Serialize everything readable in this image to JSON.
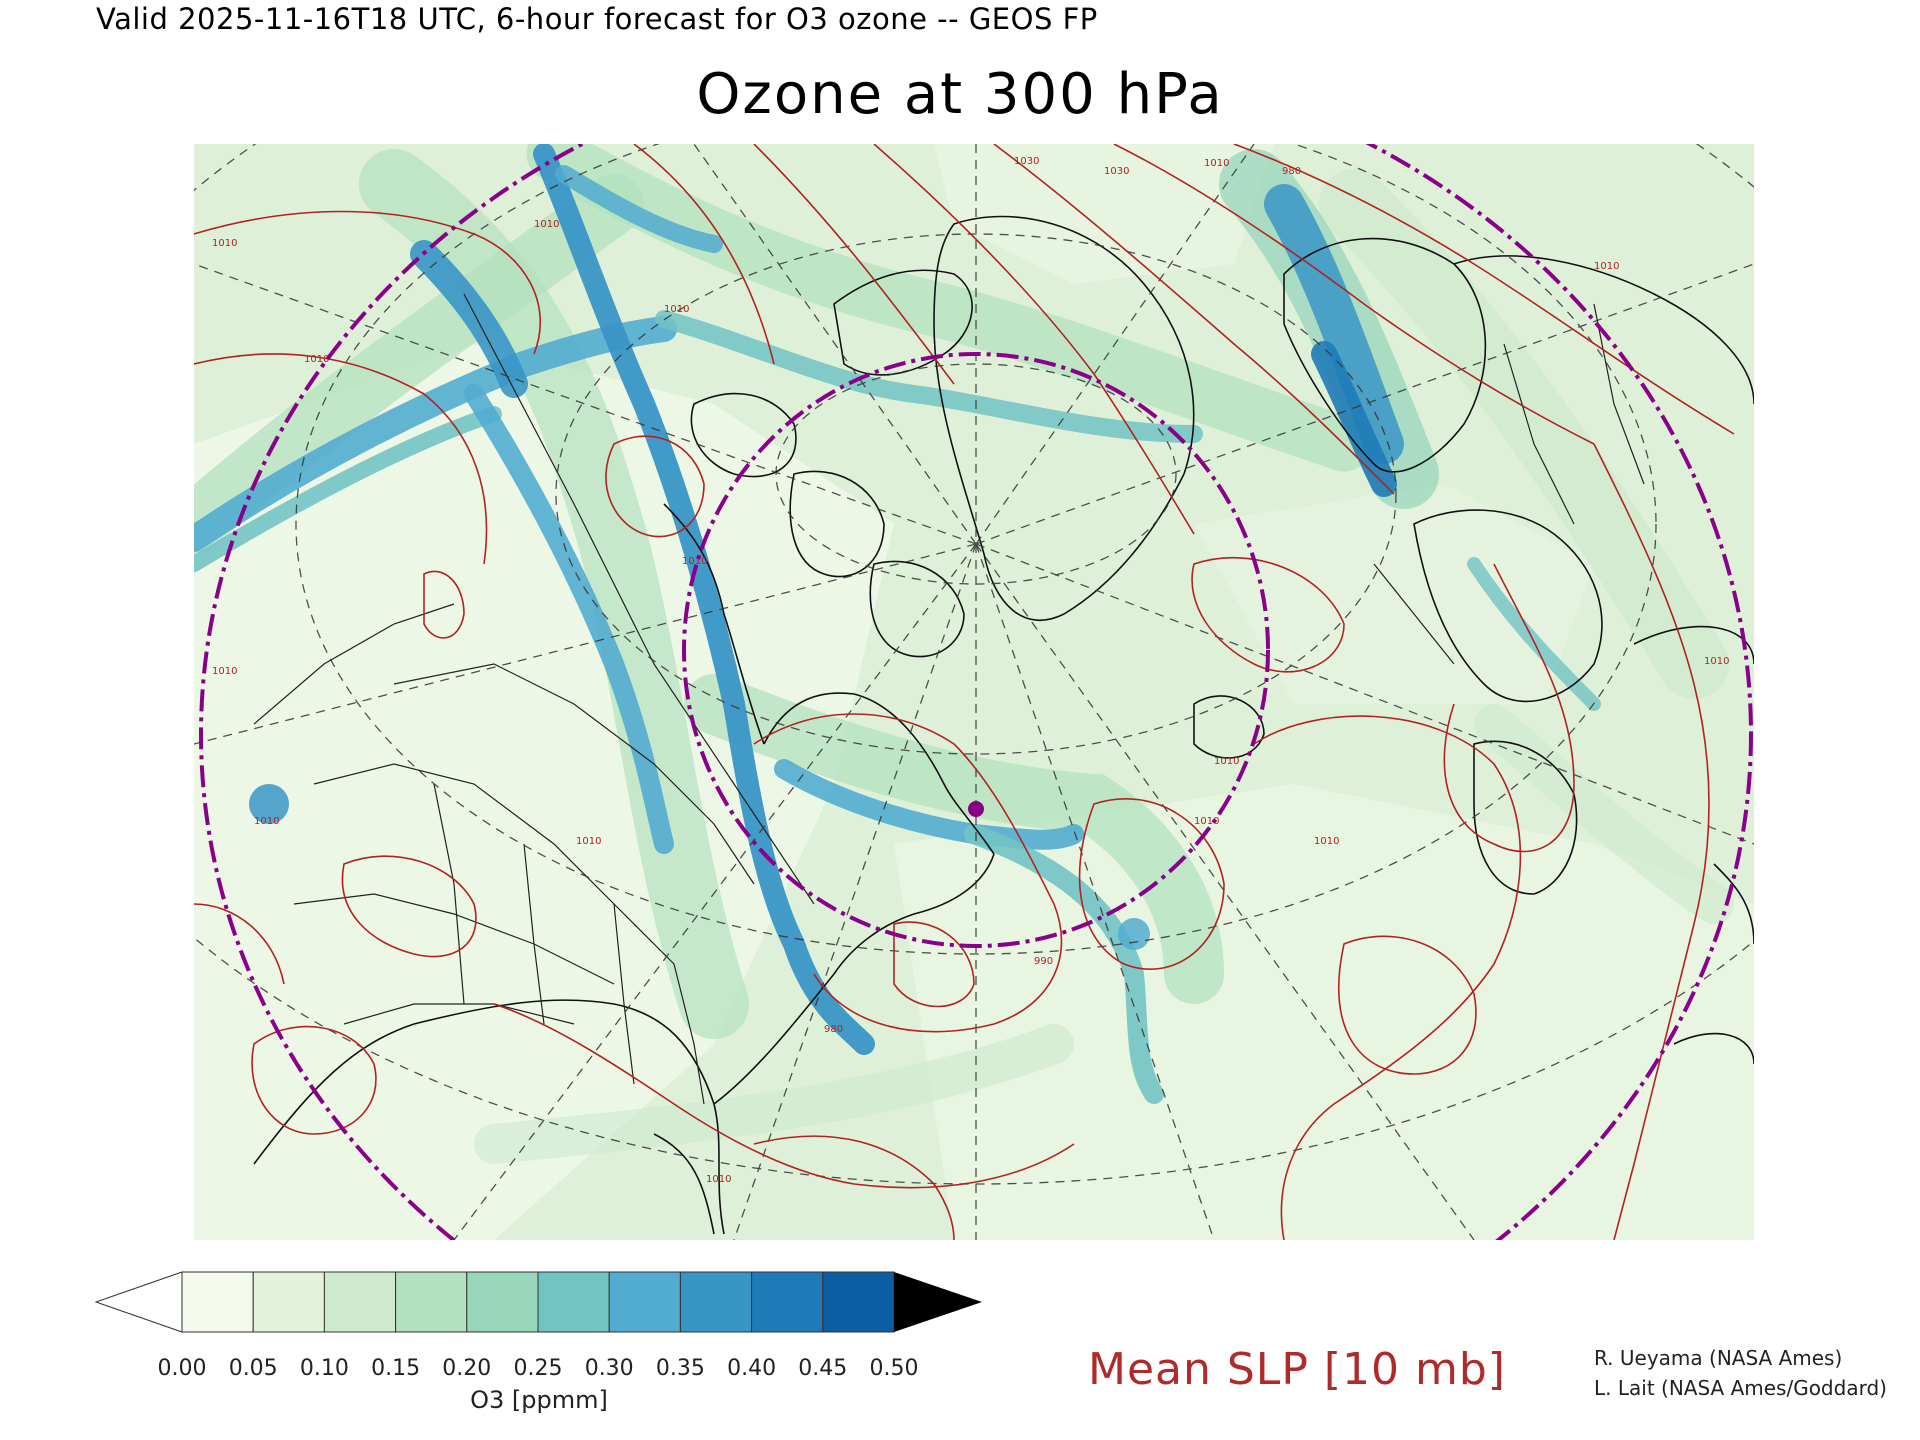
{
  "header": {
    "valid_line": "Valid 2025-11-16T18 UTC, 6-hour forecast for O3 ozone -- GEOS FP",
    "title": "Ozone at 300 hPa"
  },
  "map": {
    "background_color": "#dff0d8",
    "isobar_color": "#b22222",
    "range_ring_color": "#8a008a",
    "isobar_labels": [
      "1010",
      "1010",
      "1010",
      "1010",
      "1010",
      "1010",
      "1010",
      "1010",
      "1030",
      "1030",
      "1010",
      "980",
      "990",
      "980",
      "1010",
      "1010",
      "1010",
      "1010",
      "1010",
      "1010"
    ]
  },
  "colorbar": {
    "levels": [
      "0.00",
      "0.05",
      "0.10",
      "0.15",
      "0.20",
      "0.25",
      "0.30",
      "0.35",
      "0.40",
      "0.45",
      "0.50"
    ],
    "colors": [
      "#f4faee",
      "#e3f3da",
      "#cdeacd",
      "#b3e1bd",
      "#98d6bc",
      "#72c3c4",
      "#52acd0",
      "#3995c6",
      "#1f7bb7",
      "#0b5ea3"
    ],
    "under_color": "#ffffff",
    "over_color": "#000000",
    "units_label": "O3 [ppmm]"
  },
  "legend": {
    "slp_label": "Mean SLP [10 mb]"
  },
  "credits": [
    "R. Ueyama (NASA Ames)",
    "L. Lait (NASA Ames/Goddard)"
  ]
}
